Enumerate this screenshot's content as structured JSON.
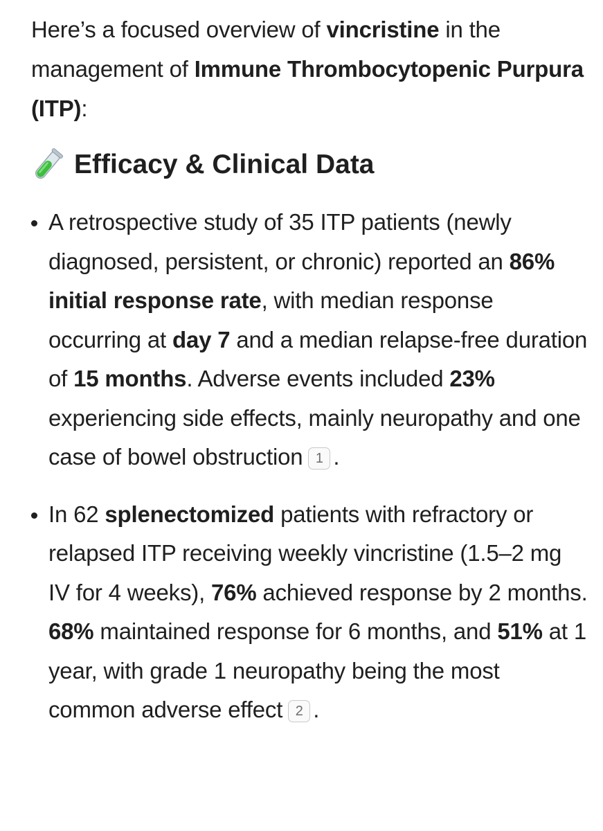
{
  "intro": {
    "p1": "Here’s a focused overview of ",
    "drug": "vincristine",
    "p2": " in the management of ",
    "condition": "Immune Thrombocytopenic Purpura (ITP)",
    "p3": ":"
  },
  "section": {
    "icon": "test-tube-icon",
    "title": "Efficacy & Clinical Data"
  },
  "bullets": [
    {
      "t1": "A retrospective study of 35 ITP patients (newly diagnosed, persistent, or chronic) reported an ",
      "b1": "86% initial response rate",
      "t2": ", with median response occurring at ",
      "b2": "day 7",
      "t3": " and a median relapse-free duration of ",
      "b3": "15 months",
      "t4": ". Adverse events included ",
      "b4": "23%",
      "t5": " experiencing side effects, mainly neuropathy and one case of bowel obstruction",
      "cite": "1",
      "end": "."
    },
    {
      "t1": "In 62 ",
      "b1": "splenectomized",
      "t2": " patients with refractory or relapsed ITP receiving weekly vincristine (1.5–2 mg IV for 4 weeks), ",
      "b2": "76%",
      "t3": " achieved response by 2 months. ",
      "b3": "68%",
      "t4": " maintained response for 6 months, and ",
      "b4": "51%",
      "t5": " at 1 year, with grade 1 neuropathy being the most common adverse effect",
      "cite": "2",
      "end": "."
    }
  ]
}
